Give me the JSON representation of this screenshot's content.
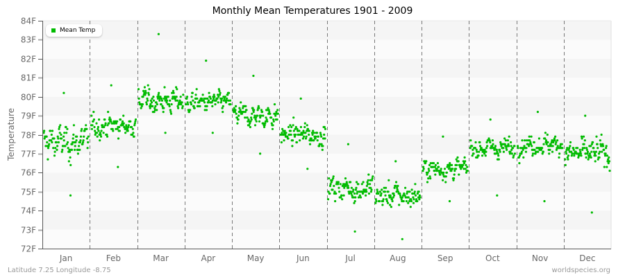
{
  "title": "Monthly Mean Temperatures 1901 - 2009",
  "footer": {
    "location": "Latitude 7.25 Longitude -8.75",
    "source": "worldspecies.org"
  },
  "legend": {
    "label": "Mean Temp",
    "color": "#00bb00"
  },
  "colors": {
    "point": "#00bb00",
    "band_light": "#f5f5f5",
    "band_white": "#fbfbfb",
    "axis": "#555555",
    "divider": "#777777"
  },
  "chart_data": {
    "type": "scatter",
    "title": "Monthly Mean Temperatures 1901 - 2009",
    "xlabel": "",
    "ylabel": "Temperature",
    "ylim": [
      72,
      84
    ],
    "yticks": [
      "72F",
      "73F",
      "74F",
      "75F",
      "76F",
      "77F",
      "78F",
      "79F",
      "80F",
      "81F",
      "82F",
      "83F",
      "84F"
    ],
    "categories": [
      "Jan",
      "Feb",
      "Mar",
      "Apr",
      "May",
      "Jun",
      "Jul",
      "Aug",
      "Sep",
      "Oct",
      "Nov",
      "Dec"
    ],
    "legend_position": "top-left",
    "grid": "alternating horizontal bands, dashed vertical month dividers",
    "series": [
      {
        "name": "Mean Temp",
        "years": "1901-2009",
        "points_per_month": 109,
        "monthly_summary": [
          {
            "month": "Jan",
            "mean": 77.6,
            "min": 74.8,
            "max": 80.2,
            "sd": 1.2
          },
          {
            "month": "Feb",
            "mean": 78.5,
            "min": 76.3,
            "max": 80.6,
            "sd": 0.8
          },
          {
            "month": "Mar",
            "mean": 79.8,
            "min": 78.1,
            "max": 83.3,
            "sd": 0.9
          },
          {
            "month": "Apr",
            "mean": 79.7,
            "min": 78.1,
            "max": 81.9,
            "sd": 0.7
          },
          {
            "month": "May",
            "mean": 79.0,
            "min": 77.0,
            "max": 81.1,
            "sd": 0.8
          },
          {
            "month": "Jun",
            "mean": 78.0,
            "min": 76.2,
            "max": 79.9,
            "sd": 0.8
          },
          {
            "month": "Jul",
            "mean": 75.2,
            "min": 72.9,
            "max": 77.5,
            "sd": 0.9
          },
          {
            "month": "Aug",
            "mean": 74.8,
            "min": 72.5,
            "max": 76.6,
            "sd": 0.9
          },
          {
            "month": "Sep",
            "mean": 76.2,
            "min": 74.5,
            "max": 77.9,
            "sd": 0.7
          },
          {
            "month": "Oct",
            "mean": 77.3,
            "min": 74.8,
            "max": 78.8,
            "sd": 0.7
          },
          {
            "month": "Nov",
            "mean": 77.5,
            "min": 74.5,
            "max": 79.2,
            "sd": 0.7
          },
          {
            "month": "Dec",
            "mean": 77.0,
            "min": 73.9,
            "max": 79.0,
            "sd": 1.0
          }
        ]
      }
    ]
  }
}
